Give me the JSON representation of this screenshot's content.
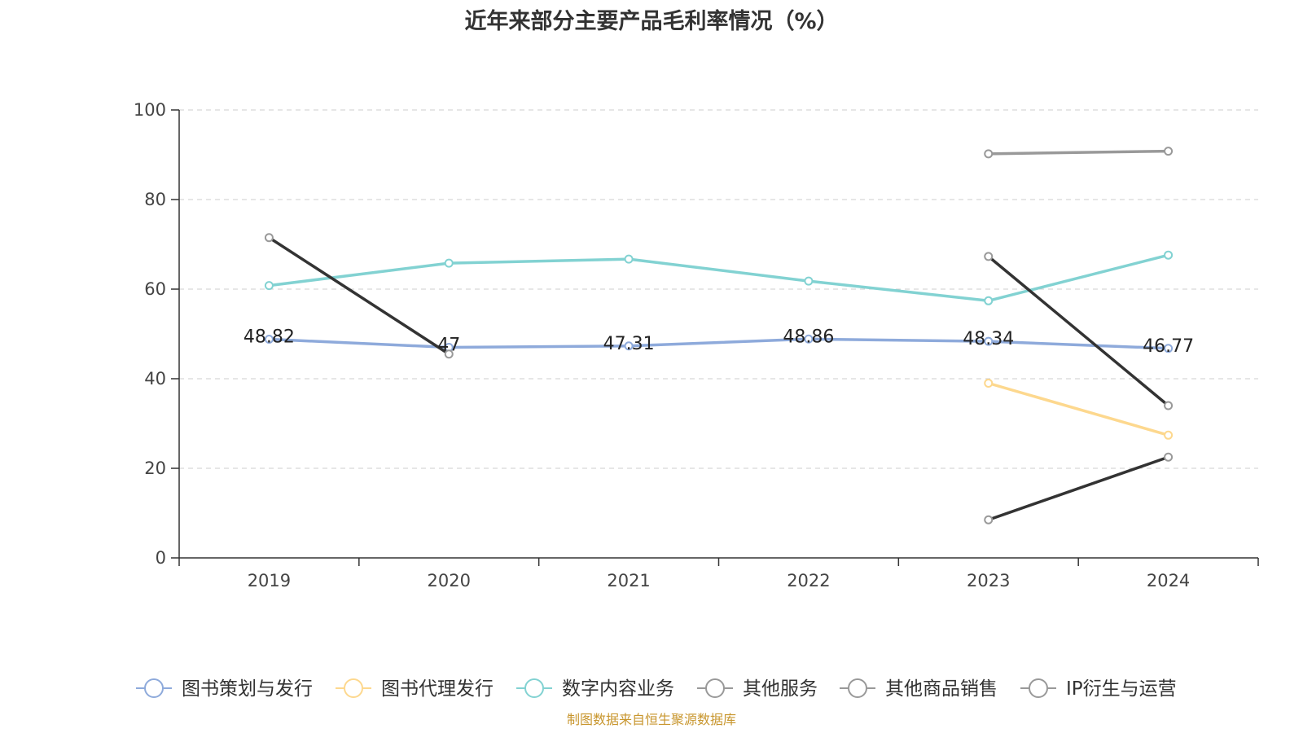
{
  "chart_data": {
    "type": "line",
    "title": "近年来部分主要产品毛利率情况（%）",
    "categories": [
      "2019",
      "2020",
      "2021",
      "2022",
      "2023",
      "2024"
    ],
    "ylim": [
      0,
      100
    ],
    "yticks": [
      0,
      20,
      40,
      60,
      80,
      100
    ],
    "grid": true,
    "legend_position": "bottom",
    "series": [
      {
        "name": "图书策划与发行",
        "color": "#8eaadb",
        "values": [
          48.82,
          47,
          47.31,
          48.86,
          48.34,
          46.77
        ],
        "show_labels": true
      },
      {
        "name": "图书代理发行",
        "color": "#fdd88e",
        "values": [
          null,
          null,
          null,
          null,
          39,
          27.4
        ],
        "show_labels": false
      },
      {
        "name": "数字内容业务",
        "color": "#82d2d2",
        "values": [
          60.8,
          65.8,
          66.7,
          61.8,
          57.4,
          67.6
        ],
        "show_labels": false
      },
      {
        "name": "其他服务",
        "color": "#333333",
        "values": [
          71.5,
          45.5,
          null,
          null,
          67.3,
          34
        ],
        "show_labels": false
      },
      {
        "name": "其他商品销售",
        "color": "#999999",
        "values": [
          null,
          null,
          null,
          null,
          90.2,
          90.8
        ],
        "show_labels": false
      },
      {
        "name": "IP衍生与运营",
        "color": "#333333",
        "values": [
          null,
          null,
          null,
          null,
          8.5,
          22.5
        ],
        "show_labels": false
      }
    ]
  },
  "source_note": "制图数据来自恒生聚源数据库"
}
